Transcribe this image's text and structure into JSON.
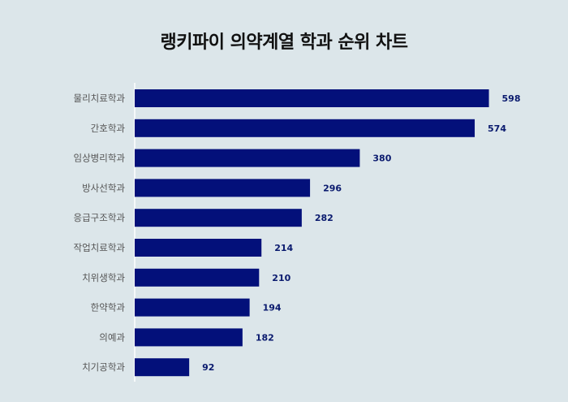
{
  "chart_data": {
    "type": "bar",
    "orientation": "horizontal",
    "title": "랭키파이 의약계열 학과 순위 차트",
    "categories": [
      "물리치료학과",
      "간호학과",
      "임상병리학과",
      "방사선학과",
      "응급구조학과",
      "작업치료학과",
      "치위생학과",
      "한약학과",
      "의예과",
      "치기공학과"
    ],
    "values": [
      598,
      574,
      380,
      296,
      282,
      214,
      210,
      194,
      182,
      92
    ],
    "xlim": [
      0,
      600
    ],
    "grid": false,
    "legend": "none",
    "bar_color": "#03107a",
    "value_label_color": "#0a1a6e",
    "background": "#dce6ea"
  }
}
